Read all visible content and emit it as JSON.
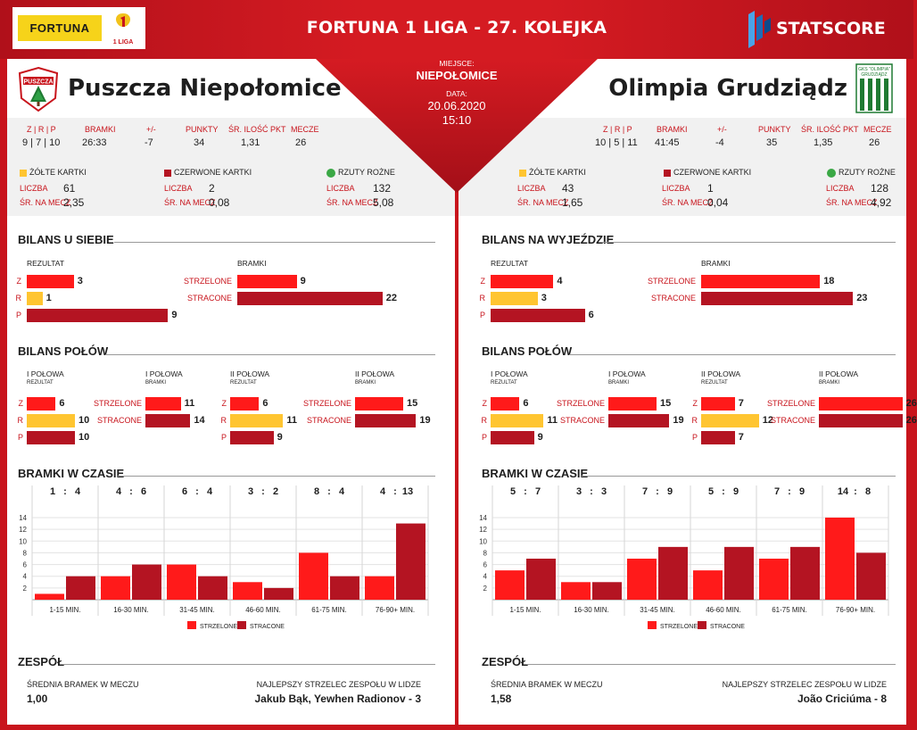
{
  "header": {
    "title": "FORTUNA 1 LIGA - 27. KOLEJKA",
    "sponsor": "FORTUNA",
    "league_badge": "1 LIGA",
    "brand": "STATSCORE"
  },
  "match": {
    "place_label": "MIEJSCE:",
    "place": "NIEPOŁOMICE",
    "date_label": "DATA:",
    "date": "20.06.2020",
    "time": "15:10"
  },
  "labels": {
    "zrp": "Z | R | P",
    "goals": "BRAMKI",
    "diff": "+/-",
    "points": "PUNKTY",
    "avg_pts": "ŚR. ILOŚĆ PKT",
    "matches": "MECZE",
    "yellow": "ŻÓŁTE KARTKI",
    "red": "CZERWONE KARTKI",
    "corners": "RZUTY ROŻNE",
    "count": "LICZBA",
    "per_match": "ŚR. NA MECZ",
    "result": "REZULTAT",
    "scored": "STRZELONE",
    "conceded": "STRACONE",
    "z": "Z",
    "r": "R",
    "p": "P",
    "half1": "I POŁOWA",
    "half2": "II POŁOWA",
    "rezultat_small": "REZULTAT",
    "bramki_small": "BRAMKI",
    "halves_title": "BILANS POŁÓW",
    "time_title": "BRAMKI W CZASIE",
    "team_title": "ZESPÓŁ",
    "avg_goals": "ŚREDNIA BRAMEK W MECZU",
    "top_scorer": "NAJLEPSZY STRZELEC ZESPOŁU W LIDZE",
    "legend_scored": "STRZELONE",
    "legend_conceded": "STRACONE",
    "colon": ":"
  },
  "colors": {
    "scored": "#ff1a1a",
    "conceded": "#b41422",
    "draw": "#ffc531",
    "brand_red": "#c8141c"
  },
  "home": {
    "name": "Puszcza Niepołomice",
    "zrp": "9 | 7 | 10",
    "goals": "26:33",
    "diff": "-7",
    "points": "34",
    "avg_pts": "1,31",
    "matches": "26",
    "yellow_count": "61",
    "yellow_avg": "2,35",
    "red_count": "2",
    "red_avg": "0,08",
    "corner_count": "132",
    "corner_avg": "5,08",
    "venue_title": "BILANS U SIEBIE",
    "venue": {
      "z": 3,
      "r": 1,
      "p": 9,
      "scored": 9,
      "conceded": 22
    },
    "halves": {
      "h1_res": {
        "z": 6,
        "r": 10,
        "p": 10
      },
      "h1_goals": {
        "scored": 11,
        "conceded": 14
      },
      "h2_res": {
        "z": 6,
        "r": 11,
        "p": 9
      },
      "h2_goals": {
        "scored": 15,
        "conceded": 19
      }
    },
    "avg_goals": "1,00",
    "top_scorer": "Jakub Bąk, Yewhen Radionov - 3",
    "logo": "puszcza-crest"
  },
  "away": {
    "name": "Olimpia Grudziądz",
    "zrp": "10 | 5 | 11",
    "goals": "41:45",
    "diff": "-4",
    "points": "35",
    "avg_pts": "1,35",
    "matches": "26",
    "yellow_count": "43",
    "yellow_avg": "1,65",
    "red_count": "1",
    "red_avg": "0,04",
    "corner_count": "128",
    "corner_avg": "4,92",
    "venue_title": "BILANS NA WYJEŹDZIE",
    "venue": {
      "z": 4,
      "r": 3,
      "p": 6,
      "scored": 18,
      "conceded": 23
    },
    "halves": {
      "h1_res": {
        "z": 6,
        "r": 11,
        "p": 9
      },
      "h1_goals": {
        "scored": 15,
        "conceded": 19
      },
      "h2_res": {
        "z": 7,
        "r": 12,
        "p": 7
      },
      "h2_goals": {
        "scored": 26,
        "conceded": 26
      }
    },
    "avg_goals": "1,58",
    "top_scorer": "João Criciúma - 8",
    "logo": "olimpia-crest"
  },
  "chart_data": [
    {
      "type": "bar",
      "categories": [
        "1-15 MIN.",
        "16-30 MIN.",
        "31-45 MIN.",
        "46-60 MIN.",
        "61-75 MIN.",
        "76-90+ MIN."
      ],
      "series": [
        {
          "name": "STRZELONE",
          "values": [
            1,
            4,
            6,
            3,
            8,
            4
          ]
        },
        {
          "name": "STRACONE",
          "values": [
            4,
            6,
            4,
            2,
            4,
            13
          ]
        }
      ],
      "ylim": [
        0,
        14
      ],
      "yticks": [
        2,
        4,
        6,
        8,
        10,
        12,
        14
      ]
    },
    {
      "type": "bar",
      "categories": [
        "1-15 MIN.",
        "16-30 MIN.",
        "31-45 MIN.",
        "46-60 MIN.",
        "61-75 MIN.",
        "76-90+ MIN."
      ],
      "series": [
        {
          "name": "STRZELONE",
          "values": [
            5,
            3,
            7,
            5,
            7,
            14
          ]
        },
        {
          "name": "STRACONE",
          "values": [
            7,
            3,
            9,
            9,
            9,
            8
          ]
        }
      ],
      "ylim": [
        0,
        14
      ],
      "yticks": [
        2,
        4,
        6,
        8,
        10,
        12,
        14
      ]
    }
  ]
}
